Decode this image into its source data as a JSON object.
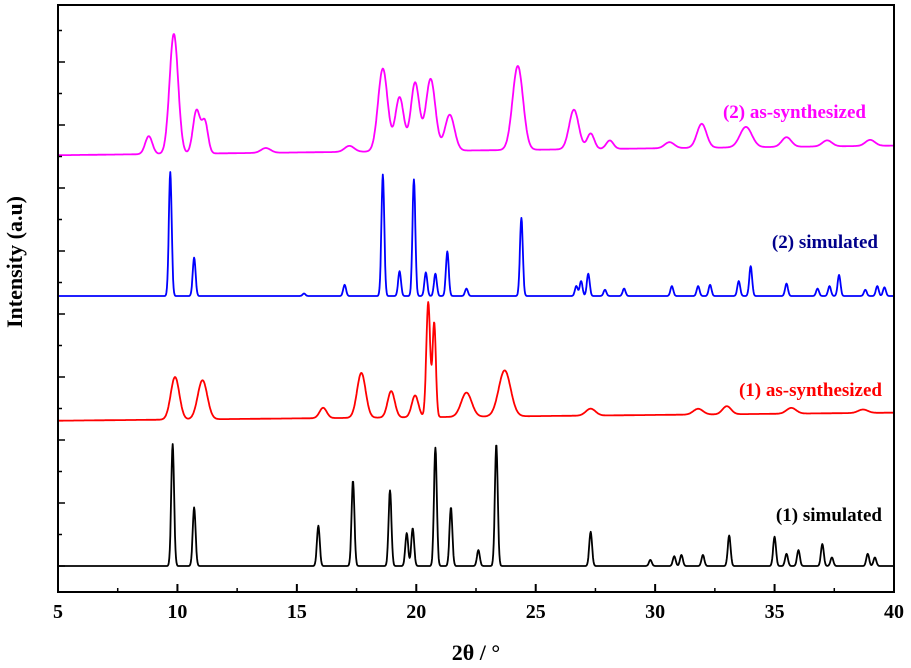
{
  "chart_data": {
    "type": "line",
    "xlabel": "2θ / °",
    "ylabel": "Intensity (a.u)",
    "xlim": [
      5,
      40
    ],
    "xticks": [
      "5",
      "10",
      "15",
      "20",
      "25",
      "30",
      "35",
      "40"
    ],
    "grid": false,
    "legend": "none",
    "series": [
      {
        "name": "(1) simulated",
        "color": "#000000",
        "baseline": 0,
        "background": 0,
        "peaks": [
          [
            9.8,
            100,
            0.06
          ],
          [
            10.7,
            48,
            0.06
          ],
          [
            15.9,
            33,
            0.06
          ],
          [
            17.35,
            70,
            0.06
          ],
          [
            18.9,
            62,
            0.06
          ],
          [
            19.6,
            27,
            0.06
          ],
          [
            19.85,
            31,
            0.06
          ],
          [
            20.8,
            97,
            0.06
          ],
          [
            21.45,
            48,
            0.06
          ],
          [
            22.6,
            13,
            0.06
          ],
          [
            23.35,
            100,
            0.06
          ],
          [
            27.3,
            28,
            0.06
          ],
          [
            29.8,
            5,
            0.06
          ],
          [
            30.8,
            8,
            0.06
          ],
          [
            31.1,
            9,
            0.06
          ],
          [
            32.0,
            9,
            0.06
          ],
          [
            33.1,
            25,
            0.06
          ],
          [
            35.0,
            24,
            0.06
          ],
          [
            35.5,
            10,
            0.06
          ],
          [
            36.0,
            13,
            0.06
          ],
          [
            37.0,
            18,
            0.06
          ],
          [
            37.4,
            7,
            0.06
          ],
          [
            38.9,
            10,
            0.06
          ],
          [
            39.2,
            7,
            0.06
          ]
        ]
      },
      {
        "name": "(1) as-synthesized",
        "color": "#ff0000",
        "baseline": 1,
        "background": [
          0.02,
          0.09
        ],
        "peaks": [
          [
            9.9,
            37,
            0.18
          ],
          [
            11.05,
            34,
            0.2
          ],
          [
            16.1,
            9,
            0.15
          ],
          [
            17.7,
            39,
            0.18
          ],
          [
            18.95,
            23,
            0.15
          ],
          [
            19.95,
            19,
            0.14
          ],
          [
            20.5,
            100,
            0.08
          ],
          [
            20.75,
            82,
            0.07
          ],
          [
            22.1,
            21,
            0.22
          ],
          [
            23.7,
            40,
            0.25
          ],
          [
            27.3,
            6,
            0.2
          ],
          [
            31.8,
            5,
            0.2
          ],
          [
            33.0,
            7,
            0.18
          ],
          [
            35.7,
            5,
            0.2
          ],
          [
            38.7,
            3,
            0.2
          ]
        ]
      },
      {
        "name": "(2) simulated",
        "color": "#0000ff",
        "baseline": 2,
        "background": 0,
        "peaks": [
          [
            9.7,
            100,
            0.06
          ],
          [
            10.7,
            31,
            0.06
          ],
          [
            15.3,
            2,
            0.06
          ],
          [
            17.0,
            9,
            0.06
          ],
          [
            18.6,
            98,
            0.06
          ],
          [
            19.3,
            20,
            0.06
          ],
          [
            19.9,
            94,
            0.06
          ],
          [
            20.4,
            19,
            0.06
          ],
          [
            20.8,
            18,
            0.06
          ],
          [
            21.3,
            36,
            0.06
          ],
          [
            22.1,
            6,
            0.06
          ],
          [
            24.4,
            63,
            0.06
          ],
          [
            26.7,
            8,
            0.06
          ],
          [
            26.9,
            12,
            0.06
          ],
          [
            27.2,
            18,
            0.06
          ],
          [
            27.9,
            5,
            0.06
          ],
          [
            28.7,
            6,
            0.06
          ],
          [
            30.7,
            8,
            0.06
          ],
          [
            31.8,
            8,
            0.06
          ],
          [
            32.3,
            9,
            0.06
          ],
          [
            33.5,
            12,
            0.06
          ],
          [
            34.0,
            24,
            0.06
          ],
          [
            35.5,
            10,
            0.06
          ],
          [
            36.8,
            6,
            0.06
          ],
          [
            37.3,
            8,
            0.06
          ],
          [
            37.7,
            17,
            0.06
          ],
          [
            38.8,
            5,
            0.06
          ],
          [
            39.3,
            8,
            0.06
          ],
          [
            39.6,
            7,
            0.06
          ]
        ]
      },
      {
        "name": "(2) as-synthesized",
        "color": "#ff00ff",
        "baseline": 3,
        "background": [
          0.04,
          0.12
        ],
        "peaks": [
          [
            8.8,
            15,
            0.15
          ],
          [
            9.85,
            100,
            0.18
          ],
          [
            10.8,
            36,
            0.15
          ],
          [
            11.15,
            26,
            0.13
          ],
          [
            13.7,
            4,
            0.2
          ],
          [
            17.2,
            5,
            0.2
          ],
          [
            18.6,
            69,
            0.2
          ],
          [
            19.3,
            45,
            0.18
          ],
          [
            19.95,
            57,
            0.18
          ],
          [
            20.6,
            60,
            0.2
          ],
          [
            21.4,
            30,
            0.2
          ],
          [
            24.25,
            70,
            0.22
          ],
          [
            26.6,
            33,
            0.2
          ],
          [
            27.3,
            13,
            0.15
          ],
          [
            28.1,
            7,
            0.15
          ],
          [
            30.6,
            5,
            0.2
          ],
          [
            31.95,
            20,
            0.2
          ],
          [
            33.8,
            17,
            0.25
          ],
          [
            35.5,
            8,
            0.2
          ],
          [
            37.2,
            5,
            0.2
          ],
          [
            39.0,
            5,
            0.2
          ]
        ]
      }
    ],
    "annotations": [
      "(2) as-synthesized",
      "(2) simulated",
      "(1) as-synthesized",
      "(1) simulated"
    ]
  }
}
